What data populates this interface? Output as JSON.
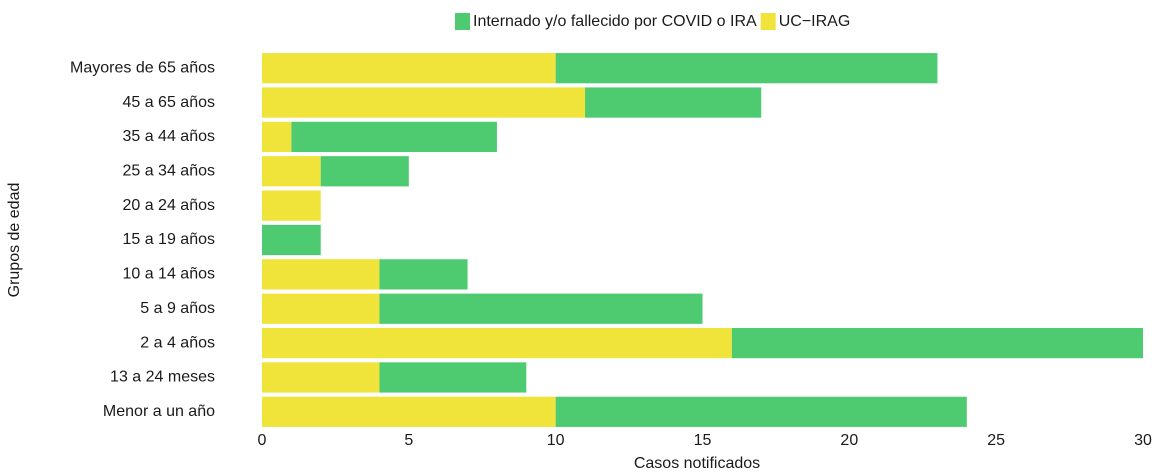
{
  "chart_data": {
    "type": "stacked-horizontal-bar",
    "categories": [
      "Mayores de 65 años",
      "45 a 65 años",
      "35 a 44 años",
      "25 a 34 años",
      "20 a 24 años",
      "15 a 19 años",
      "10 a 14 años",
      "5 a 9 años",
      "2 a 4 años",
      "13 a 24 meses",
      "Menor a un año"
    ],
    "series": [
      {
        "name": "Internado y/o fallecido por COVID o IRA",
        "color": "#4ecb71",
        "values": [
          13,
          6,
          7,
          3,
          0,
          2,
          3,
          11,
          14,
          5,
          14
        ]
      },
      {
        "name": "UC−IRAG",
        "color": "#f0e33a",
        "values": [
          10,
          11,
          1,
          2,
          2,
          0,
          4,
          4,
          16,
          4,
          10
        ]
      }
    ],
    "xlabel": "Casos notificados",
    "ylabel": "Grupos de edad",
    "xlim": [
      0,
      30
    ],
    "xticks": [
      0,
      5,
      10,
      15,
      20,
      25,
      30
    ],
    "legend": "top",
    "grid": false
  }
}
